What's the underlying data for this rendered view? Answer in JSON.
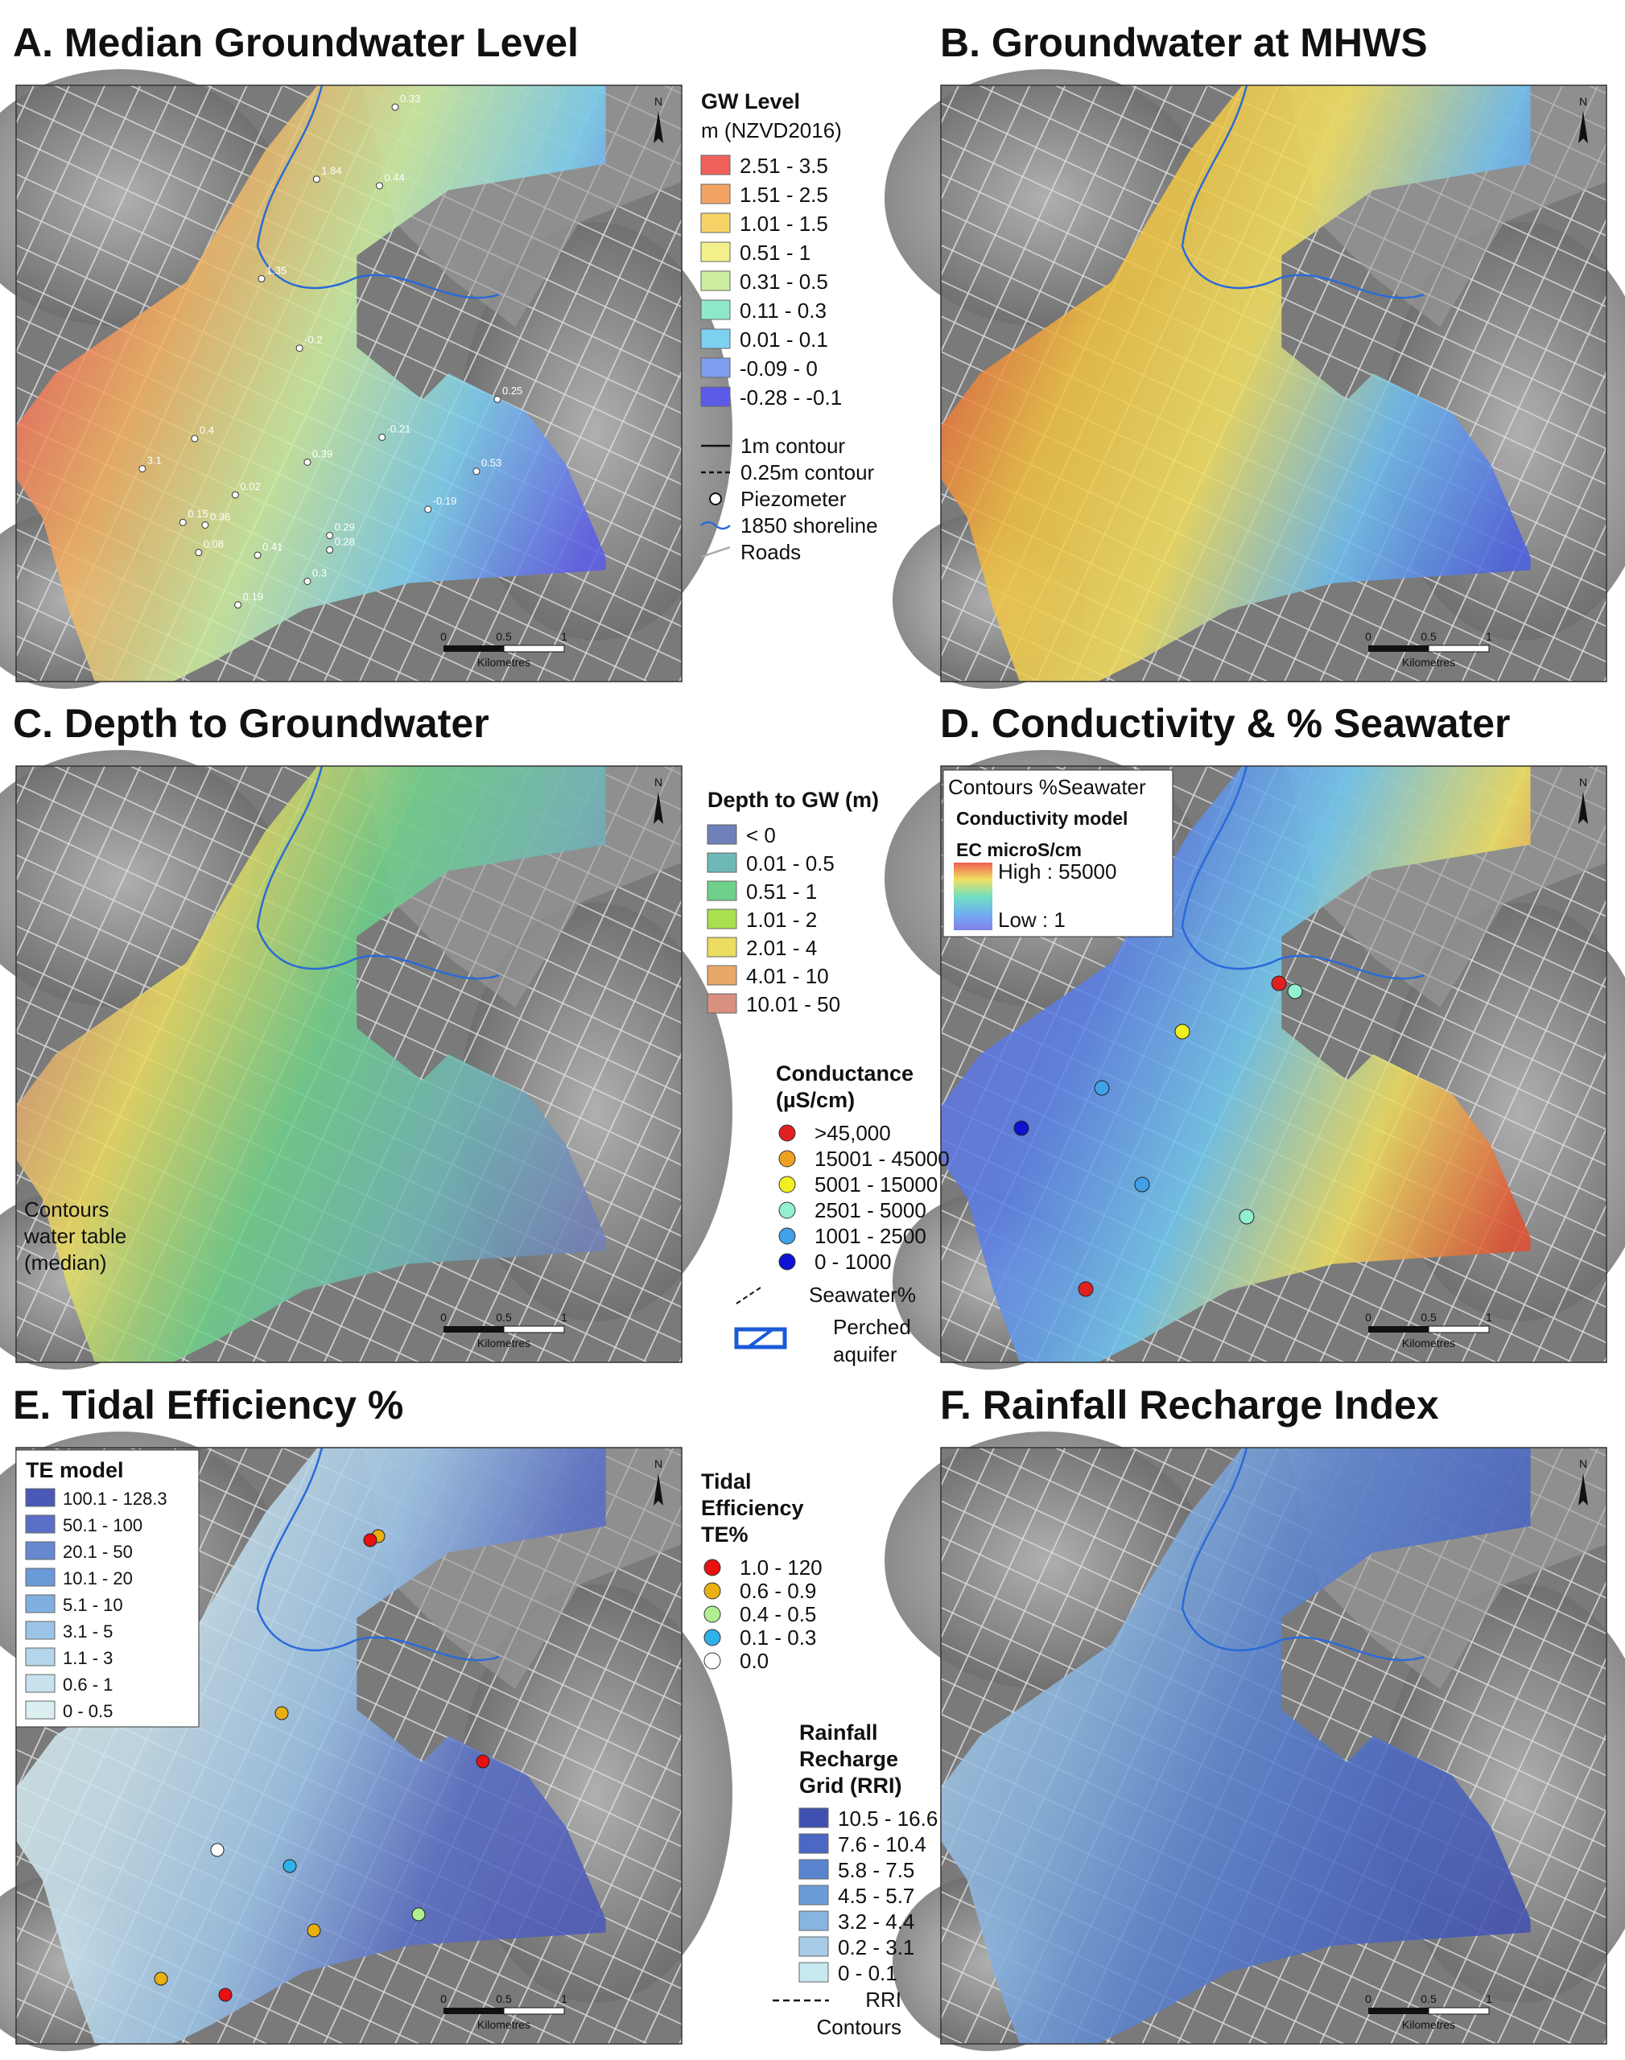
{
  "panels": [
    {
      "title": "A. Median Groundwater Level",
      "legend": {
        "title": "GW Level",
        "subtitle": "m (NZVD2016)",
        "items": [
          {
            "label": "2.51 - 3.5",
            "color": "#f0605a"
          },
          {
            "label": "1.51 - 2.5",
            "color": "#f3a463"
          },
          {
            "label": "1.01 - 1.5",
            "color": "#f6d366"
          },
          {
            "label": "0.51 - 1",
            "color": "#f1f08a"
          },
          {
            "label": "0.31 - 0.5",
            "color": "#cdeea0"
          },
          {
            "label": "0.11 - 0.3",
            "color": "#8fe8c8"
          },
          {
            "label": "0.01 - 0.1",
            "color": "#7cd0f0"
          },
          {
            "label": "-0.09 - 0",
            "color": "#7d9ef0"
          },
          {
            "label": "-0.28 - -0.1",
            "color": "#5b5be8"
          }
        ]
      },
      "symbols": [
        {
          "label": "1m contour"
        },
        {
          "label": "0.25m contour"
        },
        {
          "label": "Piezometer"
        },
        {
          "label": "1850 shoreline"
        },
        {
          "label": "Roads"
        }
      ],
      "piezometer_labels": [
        "0.33",
        "1.84",
        "0.44",
        "1.35",
        "-0.2",
        "0.25",
        "0.4",
        "-0.21",
        "0.39",
        "0.53",
        "3.1",
        "0.02",
        "-0.19",
        "0.15",
        "0.36",
        "0.08",
        "0.41",
        "0.29",
        "0.28",
        "0.3",
        "0.19"
      ],
      "north": "N",
      "scale": {
        "labels": [
          "0",
          "0.5",
          "1"
        ],
        "unit": "Kilometres"
      }
    },
    {
      "title": "B. Groundwater at MHWS",
      "north": "N",
      "scale": {
        "labels": [
          "0",
          "0.5",
          "1"
        ],
        "unit": "Kilometres"
      }
    },
    {
      "title": "C. Depth to Groundwater",
      "legend": {
        "title": "Depth to GW (m)",
        "items": [
          {
            "label": "< 0",
            "color": "#7080b8"
          },
          {
            "label": "0.01 - 0.5",
            "color": "#6fb8b8"
          },
          {
            "label": "0.51 - 1",
            "color": "#6ed08a"
          },
          {
            "label": "1.01 - 2",
            "color": "#a8e050"
          },
          {
            "label": "2.01 - 4",
            "color": "#ecdc60"
          },
          {
            "label": "4.01 - 10",
            "color": "#e8a868"
          },
          {
            "label": "10.01 - 50",
            "color": "#d89080"
          }
        ]
      },
      "map_note": [
        "Contours",
        "water table",
        "(median)"
      ],
      "north": "N",
      "scale": {
        "labels": [
          "0",
          "0.5",
          "1"
        ],
        "unit": "Kilometres"
      }
    },
    {
      "title": "D. Conductivity & % Seawater",
      "inset": {
        "title": "Contours %Seawater",
        "subtitle": "Conductivity model",
        "unit": "EC microS/cm",
        "high": "High : 55000",
        "low": "Low : 1"
      },
      "legend": {
        "title": [
          "Conductance",
          "(µS/cm)"
        ],
        "items": [
          {
            "label": ">45,000",
            "color": "#e02020"
          },
          {
            "label": "15001 - 45000",
            "color": "#f0a020"
          },
          {
            "label": "5001 - 15000",
            "color": "#f0f020"
          },
          {
            "label": "2501 - 5000",
            "color": "#90f0d0"
          },
          {
            "label": "1001 - 2500",
            "color": "#40a0e8"
          },
          {
            "label": "0 - 1000",
            "color": "#1010d0"
          }
        ]
      },
      "symbols": [
        {
          "label": "Seawater%"
        },
        {
          "label": [
            "Perched",
            "aquifer"
          ]
        }
      ],
      "north": "N",
      "scale": {
        "labels": [
          "0",
          "0.5",
          "1"
        ],
        "unit": "Kilometres"
      }
    },
    {
      "title": "E. Tidal Efficiency %",
      "inset": {
        "title": "TE model",
        "items": [
          {
            "label": "100.1 - 128.3",
            "color": "#4a58b8"
          },
          {
            "label": "50.1 - 100",
            "color": "#5a70c8"
          },
          {
            "label": "20.1 - 50",
            "color": "#6888d0"
          },
          {
            "label": "10.1 - 20",
            "color": "#6a9ad8"
          },
          {
            "label": "5.1 - 10",
            "color": "#80b0e0"
          },
          {
            "label": "3.1 - 5",
            "color": "#9cc4e8"
          },
          {
            "label": "1.1 - 3",
            "color": "#b4d6ea"
          },
          {
            "label": "0.6 - 1",
            "color": "#c8e2ee"
          },
          {
            "label": "0 - 0.5",
            "color": "#dceff0"
          }
        ]
      },
      "legend": {
        "title": [
          "Tidal",
          "Efficiency",
          "TE%"
        ],
        "items": [
          {
            "label": "1.0 - 120",
            "color": "#e81010"
          },
          {
            "label": "0.6 - 0.9",
            "color": "#e8b010"
          },
          {
            "label": "0.4 - 0.5",
            "color": "#b0f090"
          },
          {
            "label": "0.1 - 0.3",
            "color": "#30b0e8"
          },
          {
            "label": "0.0",
            "color": "#ffffff"
          }
        ]
      },
      "north": "N",
      "scale": {
        "labels": [
          "0",
          "0.5",
          "1"
        ],
        "unit": "Kilometres"
      }
    },
    {
      "title": "F. Rainfall Recharge Index",
      "legend": {
        "title": [
          "Rainfall",
          "Recharge",
          "Grid (RRI)"
        ],
        "items": [
          {
            "label": "10.5 - 16.6",
            "color": "#4050b0"
          },
          {
            "label": "7.6 - 10.4",
            "color": "#4a68c4"
          },
          {
            "label": "5.8 - 7.5",
            "color": "#5a84d0"
          },
          {
            "label": "4.5 - 5.7",
            "color": "#6c9cd8"
          },
          {
            "label": "3.2 - 4.4",
            "color": "#88b4e0"
          },
          {
            "label": "0.2 - 3.1",
            "color": "#a8cce8"
          },
          {
            "label": "0 - 0.1",
            "color": "#c8e8f0"
          }
        ]
      },
      "symbols": [
        {
          "label": [
            "RRI",
            "Contours"
          ]
        }
      ],
      "north": "N",
      "scale": {
        "labels": [
          "0",
          "0.5",
          "1"
        ],
        "unit": "Kilometres"
      }
    }
  ]
}
